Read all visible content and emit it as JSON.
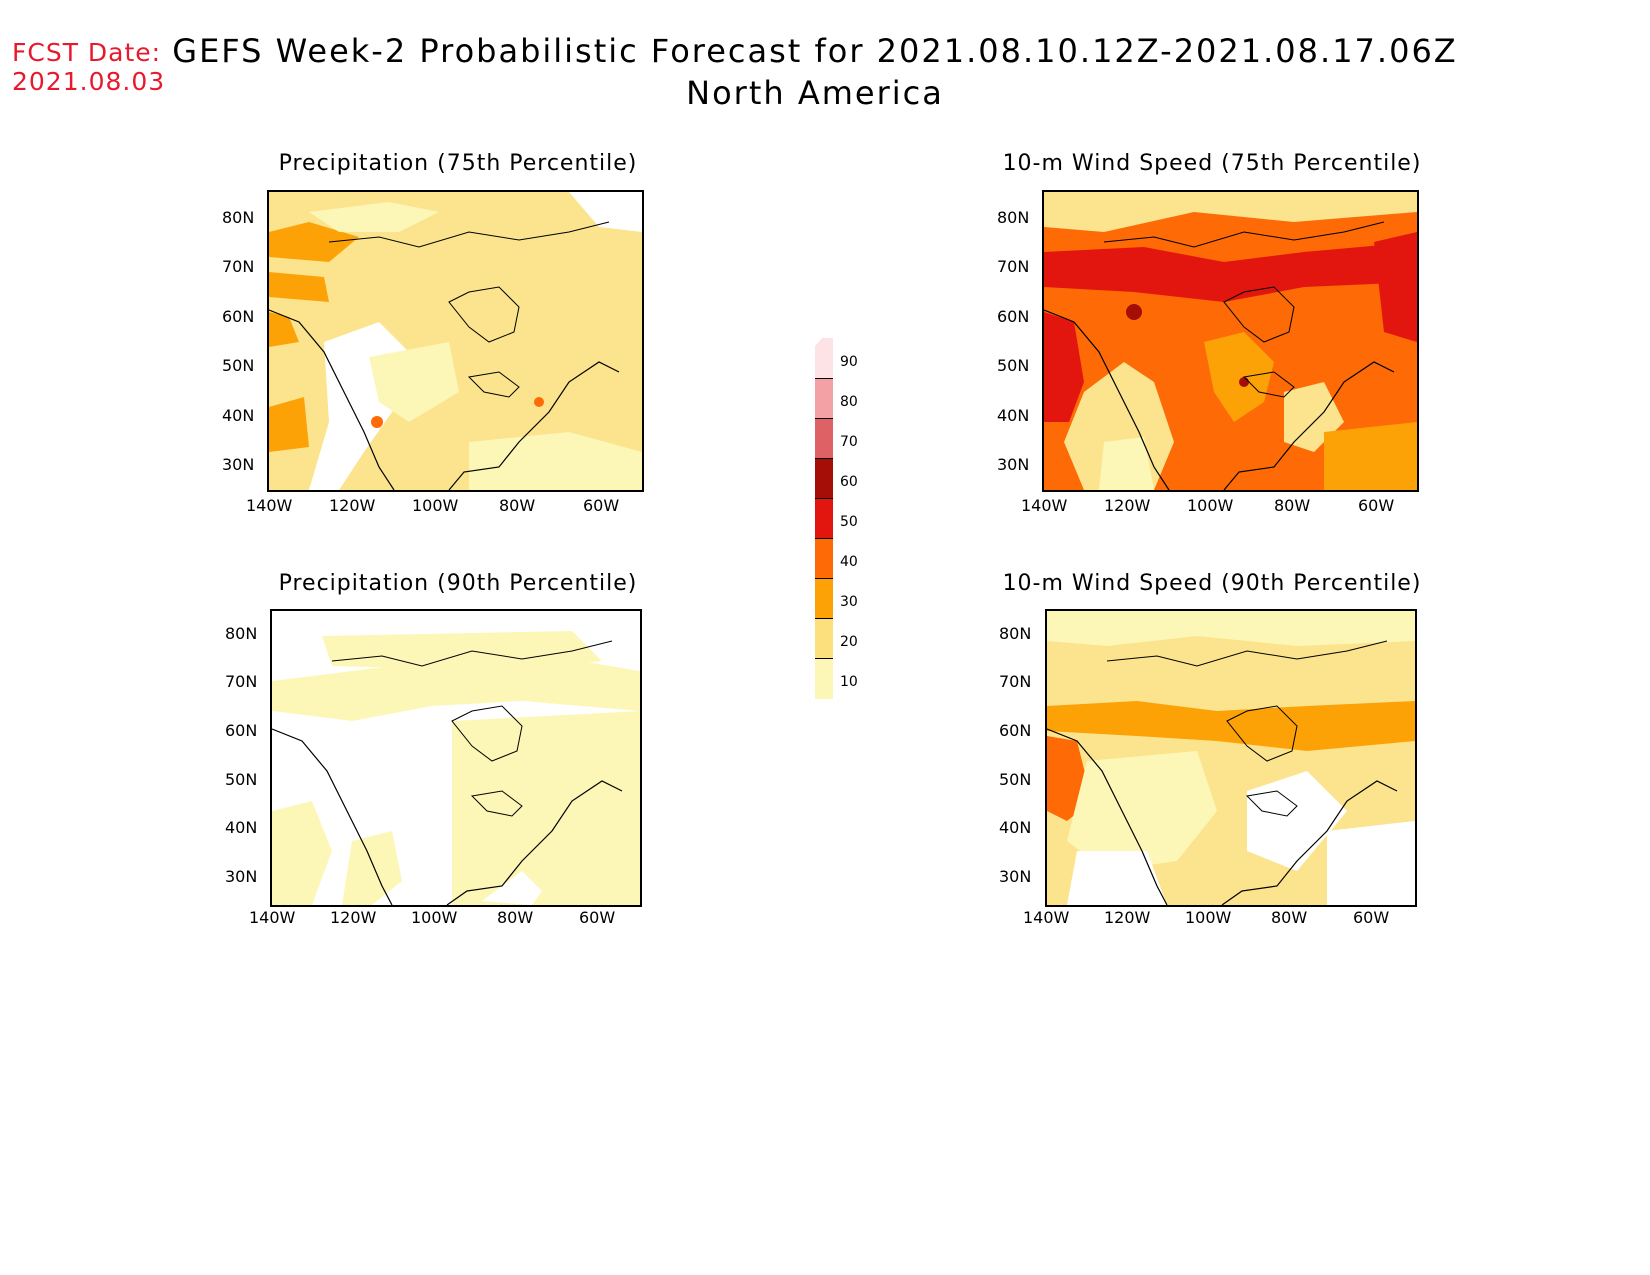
{
  "header": {
    "fcst_label": "FCST Date:",
    "fcst_date": "2021.08.03",
    "title_line1": "GEFS Week-2 Probabilistic Forecast for 2021.08.10.12Z-2021.08.17.06Z",
    "title_line2": "North America"
  },
  "panels": [
    {
      "title": "Precipitation (75th Percentile)"
    },
    {
      "title": "10-m Wind Speed (75th Percentile)"
    },
    {
      "title": "Precipitation (90th Percentile)"
    },
    {
      "title": "10-m Wind Speed (90th Percentile)"
    }
  ],
  "axes": {
    "lat_labels": [
      "80N",
      "70N",
      "60N",
      "50N",
      "40N",
      "30N"
    ],
    "lon_labels": [
      "140W",
      "120W",
      "100W",
      "80W",
      "60W"
    ]
  },
  "colorbar": {
    "levels": [
      "90",
      "80",
      "70",
      "60",
      "50",
      "40",
      "30",
      "20",
      "10"
    ],
    "colors": [
      "#fde3e6",
      "#f4a1a5",
      "#de6166",
      "#a50d07",
      "#e2160e",
      "#fd6a06",
      "#fca206",
      "#fbe07d",
      "#fdf7b7"
    ]
  }
}
